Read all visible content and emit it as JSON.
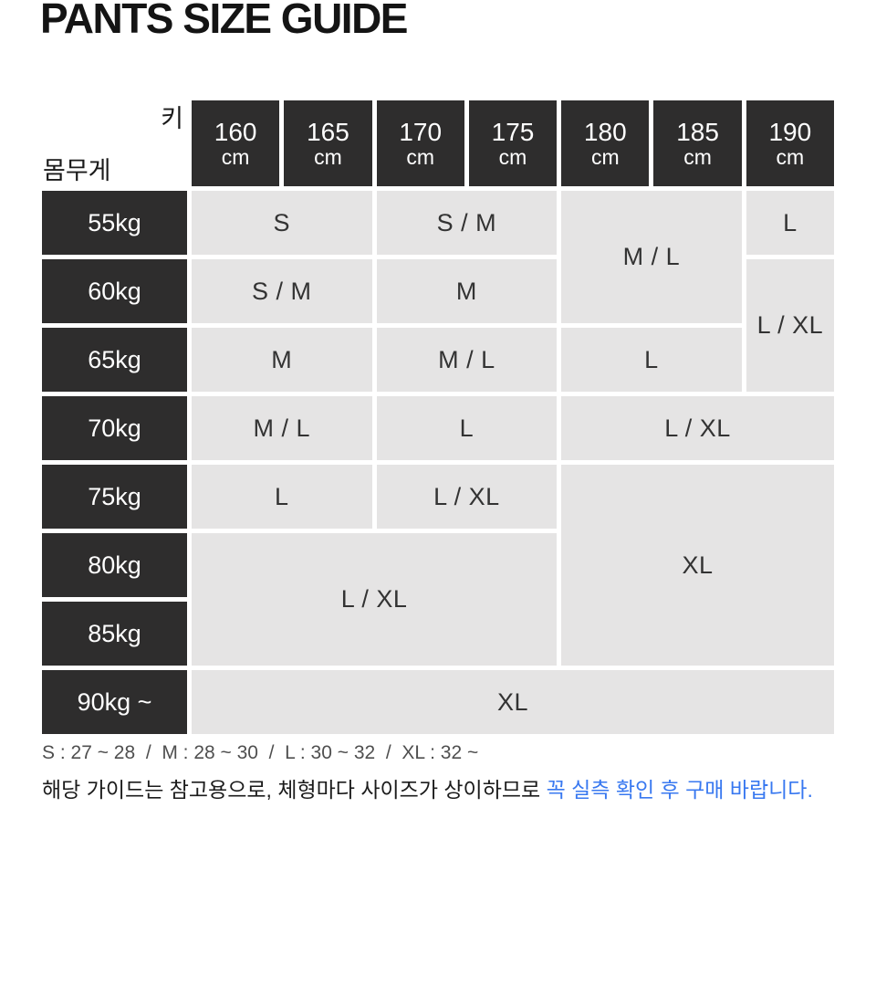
{
  "title": "PANTS SIZE GUIDE",
  "colors": {
    "header_dark": "#2e2d2d",
    "cell_gray": "#e5e4e4",
    "cell_text": "#333333",
    "accent_blue": "#3878f0"
  },
  "table": {
    "height_axis_label": "키",
    "weight_axis_label": "몸무게",
    "height_headers": [
      {
        "value": "160",
        "unit": "cm"
      },
      {
        "value": "165",
        "unit": "cm"
      },
      {
        "value": "170",
        "unit": "cm"
      },
      {
        "value": "175",
        "unit": "cm"
      },
      {
        "value": "180",
        "unit": "cm"
      },
      {
        "value": "185",
        "unit": "cm"
      },
      {
        "value": "190",
        "unit": "cm"
      }
    ],
    "weight_rows": [
      "55kg",
      "60kg",
      "65kg",
      "70kg",
      "75kg",
      "80kg",
      "85kg",
      "90kg ~"
    ],
    "size_cells": [
      {
        "label": "S"
      },
      {
        "label": "S / M"
      },
      {
        "label": "M / L"
      },
      {
        "label": "L"
      },
      {
        "label": "S / M"
      },
      {
        "label": "M"
      },
      {
        "label": "L / XL"
      },
      {
        "label": "M"
      },
      {
        "label": "M / L"
      },
      {
        "label": "L"
      },
      {
        "label": "M / L"
      },
      {
        "label": "L"
      },
      {
        "label": "L / XL"
      },
      {
        "label": "L"
      },
      {
        "label": "L / XL"
      },
      {
        "label": "XL"
      },
      {
        "label": "L / XL"
      },
      {
        "label": "XL"
      }
    ]
  },
  "chart_data": {
    "type": "table",
    "title": "PANTS SIZE GUIDE",
    "col_axis_label": "키",
    "row_axis_label": "몸무게",
    "columns": [
      "160cm",
      "165cm",
      "170cm",
      "175cm",
      "180cm",
      "185cm",
      "190cm"
    ],
    "rows": [
      "55kg",
      "60kg",
      "65kg",
      "70kg",
      "75kg",
      "80kg",
      "85kg",
      "90kg ~"
    ],
    "matrix": [
      [
        "S",
        "S",
        "S / M",
        "S / M",
        "M / L",
        "M / L",
        "L"
      ],
      [
        "S / M",
        "S / M",
        "M",
        "M",
        "M / L",
        "M / L",
        "L / XL"
      ],
      [
        "M",
        "M",
        "M / L",
        "M / L",
        "L",
        "L",
        "L / XL"
      ],
      [
        "M / L",
        "M / L",
        "L",
        "L",
        "L / XL",
        "L / XL",
        "L / XL"
      ],
      [
        "L",
        "L",
        "L / XL",
        "L / XL",
        "XL",
        "XL",
        "XL"
      ],
      [
        "L / XL",
        "L / XL",
        "L / XL",
        "L / XL",
        "XL",
        "XL",
        "XL"
      ],
      [
        "L / XL",
        "L / XL",
        "L / XL",
        "L / XL",
        "XL",
        "XL",
        "XL"
      ],
      [
        "XL",
        "XL",
        "XL",
        "XL",
        "XL",
        "XL",
        "XL"
      ]
    ]
  },
  "footer": {
    "size_legend": "S : 27 ~ 28  /  M : 28 ~ 30  /  L : 30 ~ 32  /  XL : 32 ~",
    "notice_prefix": "해당 가이드는 참고용으로, 체형마다 사이즈가 상이하므로 ",
    "notice_highlight": "꼭 실측 확인 후 구매 바랍니다."
  }
}
